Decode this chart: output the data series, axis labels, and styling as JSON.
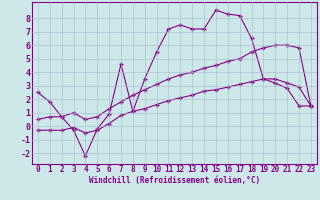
{
  "xlabel": "Windchill (Refroidissement éolien,°C)",
  "background_color": "#cce8e8",
  "line_color": "#880088",
  "grid_color": "#aabbcc",
  "xlim": [
    -0.5,
    23.5
  ],
  "ylim": [
    -2.8,
    9.2
  ],
  "xticks": [
    0,
    1,
    2,
    3,
    4,
    5,
    6,
    7,
    8,
    9,
    10,
    11,
    12,
    13,
    14,
    15,
    16,
    17,
    18,
    19,
    20,
    21,
    22,
    23
  ],
  "yticks": [
    -2,
    -1,
    0,
    1,
    2,
    3,
    4,
    5,
    6,
    7,
    8
  ],
  "line1_x": [
    0,
    1,
    2,
    3,
    4,
    5,
    6,
    7,
    8,
    9,
    10,
    11,
    12,
    13,
    14,
    15,
    16,
    17,
    18,
    19,
    20,
    21,
    22,
    23
  ],
  "line1_y": [
    2.5,
    1.8,
    0.7,
    -0.3,
    -2.2,
    -0.2,
    0.9,
    4.6,
    1.1,
    3.5,
    5.5,
    7.2,
    7.5,
    7.2,
    7.2,
    8.6,
    8.3,
    8.2,
    6.5,
    3.5,
    3.2,
    2.8,
    1.5,
    1.5
  ],
  "line2_x": [
    0,
    1,
    2,
    3,
    4,
    5,
    6,
    7,
    8,
    9,
    10,
    11,
    12,
    13,
    14,
    15,
    16,
    17,
    18,
    19,
    20,
    21,
    22,
    23
  ],
  "line2_y": [
    0.5,
    0.7,
    0.7,
    1.0,
    0.5,
    0.7,
    1.3,
    1.8,
    2.3,
    2.7,
    3.1,
    3.5,
    3.8,
    4.0,
    4.3,
    4.5,
    4.8,
    5.0,
    5.5,
    5.8,
    6.0,
    6.0,
    5.8,
    1.5
  ],
  "line3_x": [
    0,
    1,
    2,
    3,
    4,
    5,
    6,
    7,
    8,
    9,
    10,
    11,
    12,
    13,
    14,
    15,
    16,
    17,
    18,
    19,
    20,
    21,
    22,
    23
  ],
  "line3_y": [
    -0.3,
    -0.3,
    -0.3,
    -0.1,
    -0.5,
    -0.3,
    0.2,
    0.8,
    1.1,
    1.3,
    1.6,
    1.9,
    2.1,
    2.3,
    2.6,
    2.7,
    2.9,
    3.1,
    3.3,
    3.5,
    3.5,
    3.2,
    2.9,
    1.5
  ],
  "tick_fontsize": 5.5,
  "xlabel_fontsize": 5.5,
  "marker_size": 2.0,
  "line_width": 0.8
}
